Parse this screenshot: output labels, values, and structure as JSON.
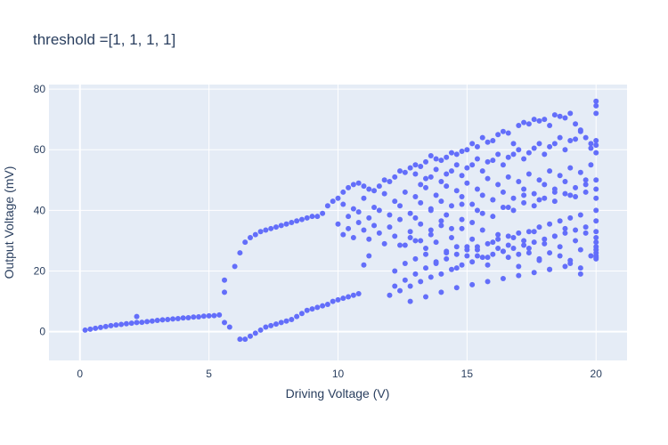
{
  "chart_data": {
    "type": "scatter",
    "title": "threshold =[1, 1, 1, 1]",
    "xlabel": "Driving Voltage (V)",
    "ylabel": "Output Voltage (mV)",
    "xlim": [
      -1.2,
      21.2
    ],
    "ylim": [
      -9.5,
      81.5
    ],
    "xticks": [
      0,
      5,
      10,
      15,
      20
    ],
    "yticks": [
      0,
      20,
      40,
      60,
      80
    ],
    "grid": true,
    "legend": "none",
    "colors": {
      "marker": "#636efa",
      "plot_bg": "#e5ecf6",
      "grid": "#ffffff",
      "text": "#2a3f5f"
    },
    "series": [
      {
        "x": [
          0.2,
          0.4,
          0.6,
          0.8,
          1.0,
          1.2,
          1.4,
          1.6,
          1.8,
          2.0,
          2.2,
          2.4,
          2.6,
          2.8,
          3.0,
          3.2,
          3.4,
          3.6,
          3.8,
          4.0,
          4.2,
          4.4,
          4.6,
          4.8,
          5.0,
          5.2,
          5.4,
          5.6,
          5.6,
          5.6,
          5.8,
          6.0,
          6.2,
          6.4,
          6.6,
          6.8,
          7.0,
          7.2,
          7.4,
          7.6,
          7.8,
          8.0,
          8.2,
          8.4,
          8.6,
          8.8,
          9.0,
          9.2,
          9.4,
          9.6,
          9.8,
          6.2,
          6.4,
          6.6,
          6.8,
          7.0,
          7.2,
          7.4,
          7.6,
          7.8,
          8.0,
          8.2,
          8.4,
          8.6,
          8.8,
          9.0,
          9.2,
          9.4,
          9.6,
          9.8,
          10.0,
          10.2,
          10.4,
          10.6,
          10.8,
          11.0,
          2.2,
          11.2
        ],
        "y": [
          0.5,
          0.8,
          1.1,
          1.4,
          1.7,
          2.0,
          2.2,
          2.4,
          2.6,
          2.8,
          3.0,
          3.1,
          3.3,
          3.5,
          3.7,
          3.9,
          4.0,
          4.2,
          4.3,
          4.5,
          4.6,
          4.8,
          4.9,
          5.1,
          5.2,
          5.3,
          5.5,
          17.0,
          13.0,
          3.0,
          1.5,
          21.5,
          26.0,
          29.5,
          31.0,
          32.0,
          33.0,
          33.5,
          34.0,
          34.5,
          35.0,
          35.5,
          36.0,
          36.5,
          37.0,
          37.5,
          38.0,
          38.0,
          39.0,
          41.5,
          43.0,
          -2.5,
          -2.5,
          -1.5,
          -0.5,
          0.5,
          1.5,
          2.0,
          2.5,
          3.0,
          3.5,
          4.0,
          5.0,
          6.0,
          7.0,
          7.5,
          8.0,
          8.5,
          9.0,
          10.0,
          10.5,
          11.0,
          11.5,
          12.0,
          12.5,
          22.0,
          5.0,
          25.0
        ]
      },
      {
        "x": [
          10.0,
          10.2,
          10.4,
          10.6,
          10.8,
          11.0,
          11.2,
          11.4,
          11.6,
          11.8,
          12.0,
          12.2,
          12.4,
          12.6,
          12.8,
          13.0,
          13.2,
          13.4,
          13.6,
          13.8,
          14.0,
          14.2,
          14.4,
          14.6,
          14.8,
          15.0,
          15.2,
          15.4,
          15.6,
          15.8,
          16.0,
          16.2,
          16.4,
          16.6,
          16.8,
          17.0,
          17.2,
          17.4,
          17.6,
          17.8,
          18.0,
          18.2,
          18.4,
          18.6,
          18.8,
          19.0,
          19.2,
          19.4,
          19.6,
          19.8,
          20.0,
          20.0,
          20.0,
          20.0,
          20.0,
          20.0,
          20.0,
          20.0,
          20.0,
          20.0,
          20.0,
          20.0,
          20.0,
          20.0,
          20.0,
          20.0,
          20.0,
          20.0,
          20.0,
          20.0
        ],
        "y": [
          44.0,
          46.0,
          47.5,
          48.5,
          49.0,
          48.0,
          47.0,
          46.5,
          48.0,
          50.0,
          49.5,
          51.0,
          53.0,
          52.5,
          54.0,
          55.0,
          54.5,
          56.0,
          58.0,
          57.0,
          56.5,
          57.5,
          59.0,
          58.5,
          59.5,
          60.0,
          62.0,
          61.0,
          64.0,
          62.5,
          63.0,
          65.0,
          66.0,
          65.5,
          62.0,
          68.0,
          69.0,
          68.5,
          70.0,
          69.5,
          70.0,
          68.0,
          71.5,
          71.0,
          70.5,
          72.0,
          68.5,
          66.5,
          64.0,
          62.0,
          76.0,
          74.5,
          72.0,
          63.0,
          61.5,
          59.0,
          50.0,
          47.0,
          44.0,
          40.0,
          36.5,
          33.0,
          31.0,
          29.5,
          28.0,
          27.0,
          26.0,
          25.0,
          24.5,
          24.0
        ]
      },
      {
        "x": [
          10.0,
          10.2,
          10.4,
          10.6,
          10.8,
          11.0,
          11.2,
          11.4,
          11.6,
          11.8,
          12.0,
          12.2,
          12.4,
          12.6,
          12.8,
          13.0,
          13.2,
          13.4,
          13.6,
          13.8,
          14.0,
          14.2,
          14.4,
          14.6,
          14.8,
          15.0,
          15.2,
          15.4,
          15.6,
          15.8,
          16.0,
          16.2,
          16.4,
          16.6,
          16.8,
          17.0,
          17.2,
          17.4,
          17.6,
          17.8,
          18.0,
          18.2,
          18.4,
          18.6,
          18.8,
          19.0,
          19.2,
          19.4,
          19.6,
          19.8
        ],
        "y": [
          35.5,
          32.0,
          34.0,
          31.0,
          36.0,
          33.5,
          30.5,
          35.0,
          32.5,
          29.0,
          34.5,
          31.5,
          37.0,
          28.5,
          33.0,
          30.0,
          35.5,
          27.5,
          32.0,
          29.5,
          36.5,
          26.0,
          31.0,
          28.0,
          34.0,
          25.0,
          30.5,
          27.0,
          33.5,
          24.5,
          29.5,
          32.0,
          26.5,
          28.5,
          31.0,
          25.5,
          30.0,
          27.5,
          33.0,
          24.0,
          29.0,
          26.0,
          31.5,
          28.0,
          34.0,
          23.5,
          30.0,
          27.0,
          32.5,
          25.0
        ]
      },
      {
        "x": [
          10.2,
          10.6,
          11.0,
          11.4,
          11.8,
          12.2,
          12.6,
          13.0,
          13.4,
          13.8,
          14.2,
          14.6,
          15.0,
          15.4,
          15.8,
          16.2,
          16.6,
          17.0,
          17.4,
          17.8,
          18.2,
          18.6,
          19.0,
          19.4,
          19.8,
          10.4,
          10.8,
          11.2,
          11.6,
          12.0,
          12.4,
          12.8,
          13.2,
          13.6,
          14.0,
          14.4,
          14.8,
          15.2,
          15.6,
          16.0,
          16.4,
          16.8,
          17.2,
          17.6,
          18.0,
          18.4,
          18.8,
          19.2,
          19.6
        ],
        "y": [
          42.0,
          40.5,
          44.0,
          41.0,
          45.5,
          43.0,
          46.0,
          44.5,
          47.5,
          45.0,
          48.0,
          46.5,
          49.0,
          47.0,
          50.5,
          48.5,
          51.0,
          49.5,
          52.0,
          50.0,
          53.0,
          51.5,
          54.0,
          52.5,
          55.0,
          38.0,
          39.5,
          37.5,
          40.0,
          38.5,
          41.5,
          39.0,
          42.5,
          40.0,
          43.0,
          41.5,
          44.5,
          42.0,
          45.0,
          43.5,
          46.0,
          44.0,
          47.0,
          45.5,
          48.5,
          46.0,
          49.5,
          47.5,
          50.0
        ]
      },
      {
        "x": [
          12.0,
          12.4,
          12.8,
          13.2,
          13.6,
          14.0,
          14.4,
          14.8,
          15.2,
          15.6,
          16.0,
          16.4,
          16.8,
          17.2,
          17.6,
          18.0,
          18.4,
          18.8,
          19.2,
          19.6,
          12.2,
          12.6,
          13.0,
          13.4,
          13.8,
          14.2,
          14.6,
          15.0,
          15.4,
          15.8,
          16.2,
          16.6,
          17.0,
          17.4,
          17.8,
          18.2,
          18.6,
          19.0,
          19.4,
          12.8,
          13.4,
          14.0,
          14.6,
          15.2,
          15.8,
          16.4,
          17.0,
          17.6,
          18.2,
          18.8,
          19.4
        ],
        "y": [
          12.0,
          13.5,
          15.0,
          16.5,
          18.0,
          19.0,
          20.5,
          22.0,
          23.0,
          24.5,
          25.5,
          26.5,
          27.5,
          28.5,
          29.5,
          30.5,
          31.5,
          32.5,
          33.5,
          34.5,
          15.0,
          17.0,
          19.0,
          21.0,
          22.5,
          24.0,
          25.5,
          27.0,
          28.0,
          29.0,
          30.5,
          31.5,
          32.5,
          33.0,
          34.5,
          35.5,
          36.5,
          37.5,
          38.5,
          10.0,
          11.5,
          13.0,
          14.5,
          15.5,
          16.5,
          17.5,
          18.5,
          19.5,
          20.5,
          21.5,
          19.0
        ]
      },
      {
        "x": [
          12.2,
          12.6,
          13.0,
          13.4,
          13.8,
          14.2,
          14.6,
          15.0,
          15.4,
          15.8,
          16.2,
          16.6,
          17.0,
          17.4,
          17.8,
          18.2,
          18.6,
          19.0,
          19.4,
          12.4,
          12.8,
          13.2,
          13.6,
          14.0,
          14.4,
          14.8,
          15.2,
          15.6,
          16.0,
          16.4,
          16.8,
          17.2,
          17.6,
          18.0,
          18.4,
          18.8,
          19.2,
          19.6,
          13.0,
          13.6,
          14.2,
          14.8,
          15.4,
          16.0,
          16.6,
          17.2,
          17.8,
          18.4,
          19.0,
          19.6
        ],
        "y": [
          20.0,
          22.5,
          24.0,
          25.5,
          23.0,
          26.5,
          21.0,
          28.0,
          25.0,
          22.0,
          27.5,
          24.5,
          21.5,
          26.0,
          23.5,
          20.5,
          25.0,
          22.5,
          21.0,
          28.5,
          31.0,
          30.0,
          33.5,
          35.0,
          34.0,
          37.0,
          36.0,
          39.0,
          38.0,
          41.0,
          40.0,
          42.5,
          41.5,
          44.0,
          43.0,
          45.5,
          44.5,
          46.0,
          37.5,
          40.5,
          38.5,
          42.0,
          40.0,
          43.5,
          41.0,
          45.0,
          43.5,
          47.0,
          45.0,
          48.5
        ]
      },
      {
        "x": [
          13.0,
          13.4,
          13.8,
          14.2,
          14.6,
          15.0,
          15.4,
          15.8,
          16.2,
          16.6,
          17.0,
          17.4,
          17.8,
          18.2,
          18.6,
          19.0,
          19.4,
          19.8,
          13.2,
          13.6,
          14.0,
          14.4,
          14.8,
          15.2,
          15.6,
          16.0,
          16.4,
          16.8,
          17.2,
          17.6,
          18.0,
          18.4,
          18.8,
          19.2
        ],
        "y": [
          52.0,
          50.5,
          53.5,
          52.0,
          55.0,
          54.0,
          57.0,
          56.0,
          58.5,
          57.5,
          60.0,
          59.0,
          62.0,
          61.0,
          64.0,
          63.0,
          66.0,
          60.5,
          48.5,
          51.0,
          49.5,
          53.0,
          51.5,
          55.0,
          53.0,
          56.5,
          55.0,
          58.5,
          57.0,
          60.5,
          58.5,
          62.0,
          60.0,
          63.5
        ]
      }
    ]
  }
}
